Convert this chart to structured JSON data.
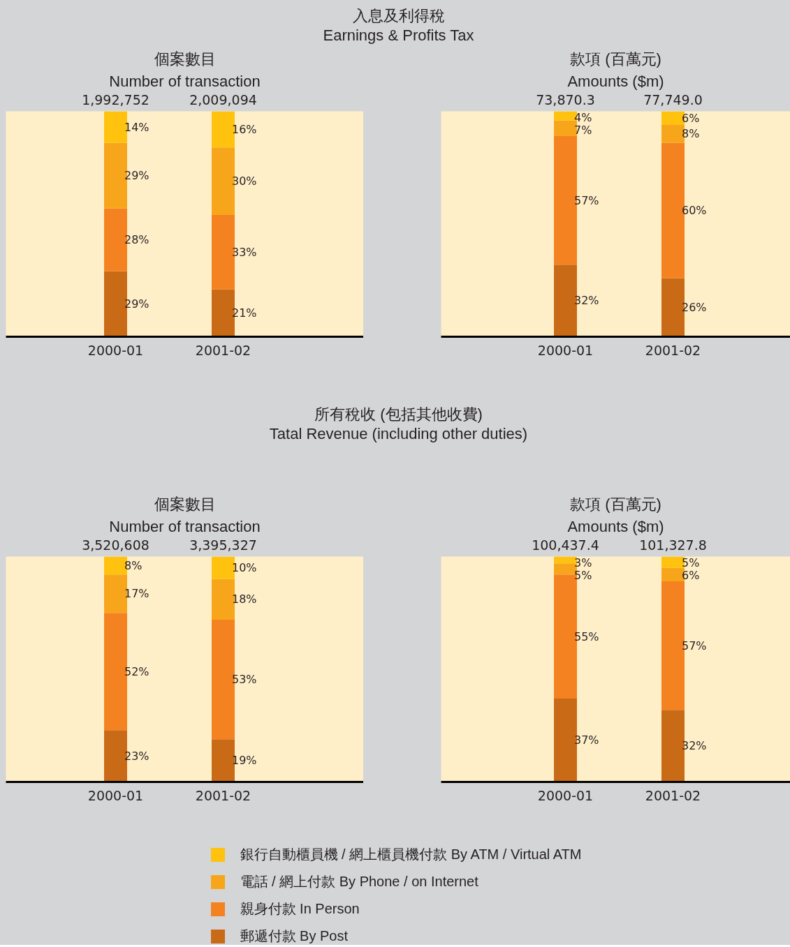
{
  "chart_data": [
    {
      "type": "bar",
      "stacked": true,
      "title": "個案數目",
      "subtitle": "Number of transaction",
      "annotations": [
        "入息及利得稅",
        "Earnings & Profits Tax",
        {
          "text": "1,992,752",
          "x": "2000-01",
          "y": 100
        },
        {
          "text": "2,009,094",
          "x": "2001-02",
          "y": 100
        }
      ],
      "categories": [
        "2000-01",
        "2001-02"
      ],
      "tick_labels": "x",
      "series": [
        {
          "color": "#c96a17",
          "values": [
            29,
            21
          ],
          "value_labels": [
            "29%",
            "21%"
          ]
        },
        {
          "color": "#f58220",
          "values": [
            28,
            33
          ],
          "value_labels": [
            "28%",
            "33%"
          ]
        },
        {
          "color": "#f7a61c",
          "values": [
            29,
            30
          ],
          "value_labels": [
            "29%",
            "30%"
          ]
        },
        {
          "color": "#ffc20e",
          "values": [
            14,
            16
          ],
          "value_labels": [
            "14%",
            "16%"
          ]
        }
      ]
    },
    {
      "type": "bar",
      "stacked": true,
      "title": "款項 (百萬元)",
      "subtitle": "Amounts ($m)",
      "annotations": [
        {
          "text": "73,870.3",
          "x": "2000-01",
          "y": 100
        },
        {
          "text": "77,749.0",
          "x": "2001-02",
          "y": 100
        }
      ],
      "categories": [
        "2000-01",
        "2001-02"
      ],
      "tick_labels": "x",
      "series": [
        {
          "color": "#c96a17",
          "values": [
            32,
            26
          ],
          "value_labels": [
            "32%",
            "26%"
          ]
        },
        {
          "color": "#f58220",
          "values": [
            57,
            60
          ],
          "value_labels": [
            "57%",
            "60%"
          ]
        },
        {
          "color": "#f7a61c",
          "values": [
            7,
            8
          ],
          "value_labels": [
            "7%",
            "8%"
          ]
        },
        {
          "color": "#ffc20e",
          "values": [
            4,
            6
          ],
          "value_labels": [
            "4%",
            "6%"
          ]
        }
      ]
    },
    {
      "type": "bar",
      "stacked": true,
      "title": "個案數目",
      "subtitle": "Number of transaction",
      "annotations": [
        "所有稅收 (包括其他收費)",
        "Tatal Revenue (including other duties)",
        {
          "text": "3,520,608",
          "x": "2000-01",
          "y": 100
        },
        {
          "text": "3,395,327",
          "x": "2001-02",
          "y": 100
        }
      ],
      "categories": [
        "2000-01",
        "2001-02"
      ],
      "tick_labels": "x",
      "series": [
        {
          "color": "#c96a17",
          "values": [
            23,
            19
          ],
          "value_labels": [
            "23%",
            "19%"
          ]
        },
        {
          "color": "#f58220",
          "values": [
            52,
            53
          ],
          "value_labels": [
            "52%",
            "53%"
          ]
        },
        {
          "color": "#f7a61c",
          "values": [
            17,
            18
          ],
          "value_labels": [
            "17%",
            "18%"
          ]
        },
        {
          "color": "#ffc20e",
          "values": [
            8,
            10
          ],
          "value_labels": [
            "8%",
            "10%"
          ]
        }
      ]
    },
    {
      "type": "bar",
      "stacked": true,
      "title": "款項 (百萬元)",
      "subtitle": "Amounts ($m)",
      "annotations": [
        {
          "text": "100,437.4",
          "x": "2000-01",
          "y": 100
        },
        {
          "text": "101,327.8",
          "x": "2001-02",
          "y": 100
        }
      ],
      "categories": [
        "2000-01",
        "2001-02"
      ],
      "tick_labels": "x",
      "legend": "bottom",
      "series": [
        {
          "name": "郵遞付款 By Post",
          "color": "#c96a17",
          "values": [
            37,
            32
          ],
          "value_labels": [
            "37%",
            "32%"
          ]
        },
        {
          "name": "親身付款 In Person",
          "color": "#f58220",
          "values": [
            55,
            57
          ],
          "value_labels": [
            "55%",
            "57%"
          ]
        },
        {
          "name": "電話 / 網上付款 By Phone / on Internet",
          "color": "#f7a61c",
          "values": [
            5,
            6
          ],
          "value_labels": [
            "5%",
            "6%"
          ]
        },
        {
          "name": "銀行自動櫃員機 / 網上櫃員機付款 By ATM / Virtual ATM",
          "color": "#ffc20e",
          "values": [
            3,
            5
          ],
          "value_labels": [
            "3%",
            "5%"
          ]
        }
      ]
    }
  ]
}
